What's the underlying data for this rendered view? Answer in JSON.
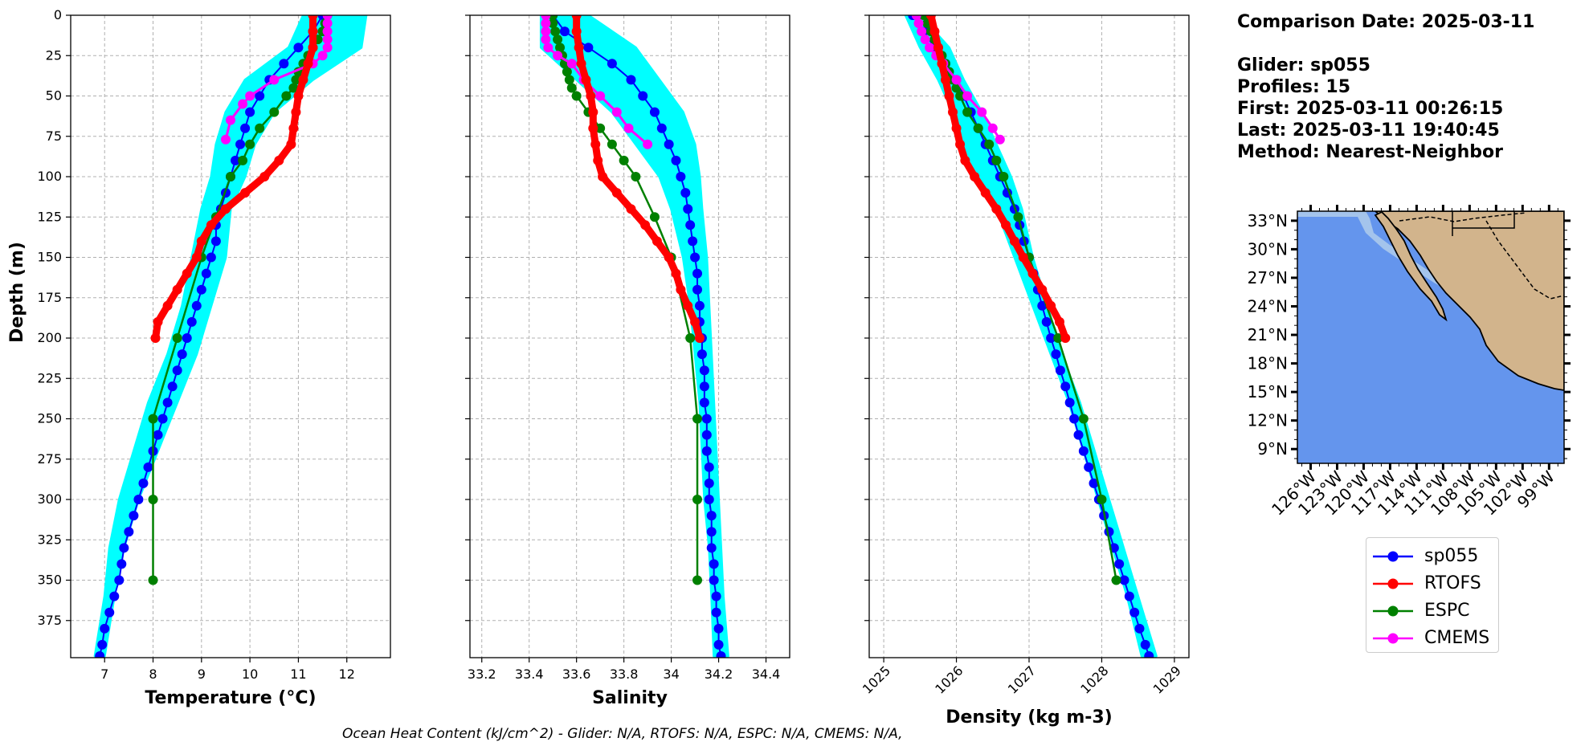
{
  "info": {
    "comparison_date": "Comparison Date: 2025-03-11",
    "glider": "Glider: sp055",
    "profiles": "Profiles: 15",
    "first": "First: 2025-03-11 00:26:15",
    "last": "Last: 2025-03-11 19:40:45",
    "method": "Method: Nearest-Neighbor"
  },
  "footer": "Ocean Heat Content (kJ/cm^2) - Glider: N/A,  RTOFS: N/A,  ESPC: N/A,  CMEMS: N/A,",
  "legend": [
    {
      "name": "sp055",
      "color": "#0000ff"
    },
    {
      "name": "RTOFS",
      "color": "#ff0000"
    },
    {
      "name": "ESPC",
      "color": "#008000"
    },
    {
      "name": "CMEMS",
      "color": "#ff00ff"
    }
  ],
  "colors": {
    "glider_raw": "#00ffff",
    "ocean": "#6495ed",
    "land": "#d2b48c",
    "shelf": "#a4c4ec"
  },
  "map": {
    "lat_labels": [
      "33°N",
      "30°N",
      "27°N",
      "24°N",
      "21°N",
      "18°N",
      "15°N",
      "12°N",
      "9°N"
    ],
    "lon_labels": [
      "126°W",
      "123°W",
      "120°W",
      "117°W",
      "114°W",
      "111°W",
      "108°W",
      "105°W",
      "102°W",
      "99°W"
    ],
    "lat_range": [
      7.5,
      34.0
    ],
    "lon_range": [
      -127.5,
      -97.3
    ]
  },
  "chart_data": [
    {
      "type": "line",
      "xlabel": "Temperature (°C)",
      "ylabel": "Depth (m)",
      "xlim": [
        6.3,
        12.9
      ],
      "ylim": [
        398,
        0
      ],
      "xticks": [
        7,
        8,
        9,
        10,
        11,
        12
      ],
      "yticks": [
        0,
        25,
        50,
        75,
        100,
        125,
        150,
        175,
        200,
        225,
        250,
        275,
        300,
        325,
        350,
        375
      ],
      "grid": true,
      "raw_glider": {
        "name": "sp055 raw",
        "depth": [
          0,
          20,
          40,
          60,
          80,
          100,
          120,
          150,
          180,
          210,
          240,
          270,
          300,
          330,
          360,
          397
        ],
        "min": [
          11.1,
          10.8,
          9.9,
          9.5,
          9.3,
          9.2,
          9.0,
          8.8,
          8.6,
          8.3,
          7.9,
          7.6,
          7.3,
          7.1,
          7.0,
          6.8
        ],
        "max": [
          12.4,
          12.3,
          11.3,
          10.5,
          10.1,
          9.9,
          9.6,
          9.5,
          9.2,
          8.9,
          8.5,
          8.1,
          7.7,
          7.4,
          7.2,
          7.0
        ]
      },
      "series": [
        {
          "name": "sp055",
          "depth": [
            0,
            10,
            20,
            30,
            40,
            50,
            60,
            70,
            80,
            90,
            100,
            110,
            120,
            130,
            140,
            150,
            160,
            170,
            180,
            190,
            200,
            210,
            220,
            230,
            240,
            250,
            260,
            270,
            280,
            290,
            300,
            310,
            320,
            330,
            340,
            350,
            360,
            370,
            380,
            390,
            397
          ],
          "values": [
            11.5,
            11.3,
            11.0,
            10.7,
            10.4,
            10.2,
            10.0,
            9.9,
            9.8,
            9.7,
            9.6,
            9.5,
            9.4,
            9.3,
            9.3,
            9.2,
            9.1,
            9.0,
            8.9,
            8.8,
            8.7,
            8.6,
            8.5,
            8.4,
            8.3,
            8.2,
            8.1,
            8.0,
            7.9,
            7.8,
            7.7,
            7.6,
            7.5,
            7.4,
            7.35,
            7.3,
            7.2,
            7.1,
            7.0,
            6.95,
            6.9
          ]
        },
        {
          "name": "RTOFS",
          "depth": [
            0,
            10,
            20,
            30,
            40,
            50,
            60,
            70,
            80,
            90,
            100,
            110,
            120,
            130,
            140,
            150,
            160,
            170,
            180,
            190,
            200
          ],
          "values": [
            11.3,
            11.3,
            11.3,
            11.2,
            11.1,
            11.0,
            10.95,
            10.9,
            10.85,
            10.6,
            10.3,
            9.9,
            9.5,
            9.2,
            9.0,
            8.9,
            8.7,
            8.5,
            8.3,
            8.1,
            8.05
          ]
        },
        {
          "name": "ESPC",
          "depth": [
            0,
            5,
            10,
            15,
            20,
            25,
            30,
            35,
            40,
            45,
            50,
            60,
            70,
            80,
            90,
            100,
            125,
            150,
            200,
            250,
            300,
            350
          ],
          "values": [
            11.6,
            11.55,
            11.5,
            11.4,
            11.3,
            11.2,
            11.1,
            11.0,
            10.95,
            10.9,
            10.75,
            10.5,
            10.2,
            10.0,
            9.85,
            9.6,
            9.3,
            9.0,
            8.5,
            8.0,
            8.0,
            8.0
          ]
        },
        {
          "name": "CMEMS",
          "depth": [
            0,
            5,
            10,
            15,
            20,
            25,
            30,
            40,
            50,
            55,
            65,
            77
          ],
          "values": [
            11.6,
            11.6,
            11.6,
            11.6,
            11.6,
            11.5,
            11.3,
            10.5,
            10.0,
            9.85,
            9.6,
            9.5
          ]
        }
      ]
    },
    {
      "type": "line",
      "xlabel": "Salinity",
      "xlim": [
        33.15,
        34.5
      ],
      "ylim": [
        398,
        0
      ],
      "xticks": [
        33.2,
        33.4,
        33.6,
        33.8,
        34.0,
        34.2,
        34.4
      ],
      "grid": true,
      "raw_glider": {
        "name": "sp055 raw",
        "depth": [
          0,
          20,
          40,
          60,
          80,
          100,
          120,
          150,
          180,
          210,
          240,
          270,
          300,
          330,
          360,
          397
        ],
        "min": [
          33.45,
          33.45,
          33.6,
          33.75,
          33.85,
          33.95,
          34.0,
          34.05,
          34.08,
          34.1,
          34.12,
          34.13,
          34.14,
          34.16,
          34.17,
          34.18
        ],
        "max": [
          33.65,
          33.85,
          33.95,
          34.05,
          34.1,
          34.12,
          34.13,
          34.15,
          34.16,
          34.17,
          34.18,
          34.19,
          34.2,
          34.21,
          34.22,
          34.24
        ]
      },
      "series": [
        {
          "name": "sp055",
          "depth": [
            0,
            10,
            20,
            30,
            40,
            50,
            60,
            70,
            80,
            90,
            100,
            110,
            120,
            130,
            140,
            150,
            160,
            170,
            180,
            190,
            200,
            210,
            220,
            230,
            240,
            250,
            260,
            270,
            280,
            290,
            300,
            310,
            320,
            330,
            340,
            350,
            360,
            370,
            380,
            390,
            397
          ],
          "values": [
            33.5,
            33.55,
            33.65,
            33.75,
            33.83,
            33.88,
            33.93,
            33.96,
            33.99,
            34.02,
            34.04,
            34.06,
            34.07,
            34.08,
            34.09,
            34.1,
            34.11,
            34.11,
            34.12,
            34.12,
            34.13,
            34.13,
            34.14,
            34.14,
            34.14,
            34.15,
            34.15,
            34.15,
            34.16,
            34.16,
            34.16,
            34.17,
            34.17,
            34.17,
            34.18,
            34.18,
            34.19,
            34.19,
            34.2,
            34.2,
            34.21
          ]
        },
        {
          "name": "RTOFS",
          "depth": [
            0,
            10,
            20,
            30,
            40,
            50,
            60,
            70,
            80,
            90,
            100,
            110,
            120,
            130,
            140,
            150,
            160,
            170,
            180,
            190,
            200
          ],
          "values": [
            33.6,
            33.6,
            33.61,
            33.62,
            33.64,
            33.66,
            33.67,
            33.67,
            33.68,
            33.69,
            33.71,
            33.77,
            33.83,
            33.89,
            33.94,
            33.99,
            34.02,
            34.04,
            34.07,
            34.1,
            34.12
          ]
        },
        {
          "name": "ESPC",
          "depth": [
            0,
            5,
            10,
            15,
            20,
            25,
            30,
            35,
            40,
            45,
            50,
            60,
            70,
            80,
            90,
            100,
            125,
            150,
            200,
            250,
            300,
            350
          ],
          "values": [
            33.5,
            33.5,
            33.51,
            33.52,
            33.53,
            33.54,
            33.55,
            33.56,
            33.57,
            33.58,
            33.6,
            33.65,
            33.7,
            33.75,
            33.8,
            33.85,
            33.93,
            34.0,
            34.08,
            34.11,
            34.11,
            34.11
          ]
        },
        {
          "name": "CMEMS",
          "depth": [
            0,
            5,
            10,
            15,
            20,
            25,
            30,
            40,
            50,
            60,
            70,
            80
          ],
          "values": [
            33.47,
            33.47,
            33.47,
            33.47,
            33.48,
            33.52,
            33.58,
            33.63,
            33.7,
            33.77,
            33.82,
            33.9
          ]
        }
      ]
    },
    {
      "type": "line",
      "xlabel": "Density (kg m-3)",
      "xlim": [
        1024.8,
        1029.2
      ],
      "ylim": [
        398,
        0
      ],
      "xticks": [
        1025,
        1026,
        1027,
        1028,
        1029
      ],
      "grid": true,
      "raw_glider": {
        "name": "sp055 raw",
        "depth": [
          0,
          20,
          40,
          60,
          80,
          100,
          120,
          150,
          180,
          210,
          240,
          270,
          300,
          330,
          360,
          397
        ],
        "min": [
          1025.3,
          1025.5,
          1025.75,
          1025.95,
          1026.1,
          1026.3,
          1026.55,
          1026.8,
          1027.05,
          1027.3,
          1027.55,
          1027.75,
          1027.95,
          1028.15,
          1028.35,
          1028.55
        ],
        "max": [
          1025.5,
          1025.9,
          1026.1,
          1026.35,
          1026.55,
          1026.75,
          1026.9,
          1027.05,
          1027.25,
          1027.45,
          1027.7,
          1027.9,
          1028.1,
          1028.3,
          1028.5,
          1028.75
        ]
      },
      "series": [
        {
          "name": "sp055",
          "depth": [
            0,
            10,
            20,
            30,
            40,
            50,
            60,
            70,
            80,
            90,
            100,
            110,
            120,
            130,
            140,
            150,
            160,
            170,
            180,
            190,
            200,
            210,
            220,
            230,
            240,
            250,
            260,
            270,
            280,
            290,
            300,
            310,
            320,
            330,
            340,
            350,
            360,
            370,
            380,
            390,
            397
          ],
          "values": [
            1025.4,
            1025.55,
            1025.7,
            1025.85,
            1026.0,
            1026.1,
            1026.2,
            1026.3,
            1026.4,
            1026.5,
            1026.6,
            1026.7,
            1026.8,
            1026.87,
            1026.93,
            1027.0,
            1027.06,
            1027.12,
            1027.18,
            1027.24,
            1027.3,
            1027.37,
            1027.43,
            1027.5,
            1027.56,
            1027.62,
            1027.68,
            1027.75,
            1027.82,
            1027.89,
            1027.96,
            1028.03,
            1028.1,
            1028.17,
            1028.24,
            1028.31,
            1028.38,
            1028.45,
            1028.52,
            1028.6,
            1028.65
          ]
        },
        {
          "name": "RTOFS",
          "depth": [
            0,
            10,
            20,
            30,
            40,
            50,
            60,
            70,
            80,
            90,
            100,
            110,
            120,
            130,
            140,
            150,
            160,
            170,
            180,
            190,
            200
          ],
          "values": [
            1025.65,
            1025.7,
            1025.75,
            1025.8,
            1025.85,
            1025.9,
            1025.95,
            1026.0,
            1026.05,
            1026.12,
            1026.25,
            1026.4,
            1026.55,
            1026.68,
            1026.8,
            1026.92,
            1027.05,
            1027.18,
            1027.3,
            1027.42,
            1027.5
          ]
        },
        {
          "name": "ESPC",
          "depth": [
            0,
            5,
            10,
            15,
            20,
            25,
            30,
            35,
            40,
            45,
            50,
            60,
            70,
            80,
            90,
            100,
            125,
            150,
            200,
            250,
            300,
            350
          ],
          "values": [
            1025.55,
            1025.6,
            1025.65,
            1025.7,
            1025.75,
            1025.8,
            1025.85,
            1025.9,
            1025.95,
            1026.0,
            1026.05,
            1026.15,
            1026.3,
            1026.45,
            1026.55,
            1026.65,
            1026.85,
            1027.0,
            1027.4,
            1027.75,
            1028.0,
            1028.2
          ]
        },
        {
          "name": "CMEMS",
          "depth": [
            0,
            5,
            10,
            15,
            20,
            25,
            30,
            40,
            50,
            60,
            70,
            77
          ],
          "values": [
            1025.45,
            1025.48,
            1025.52,
            1025.57,
            1025.63,
            1025.72,
            1025.82,
            1026.0,
            1026.15,
            1026.35,
            1026.5,
            1026.6
          ]
        }
      ]
    }
  ]
}
